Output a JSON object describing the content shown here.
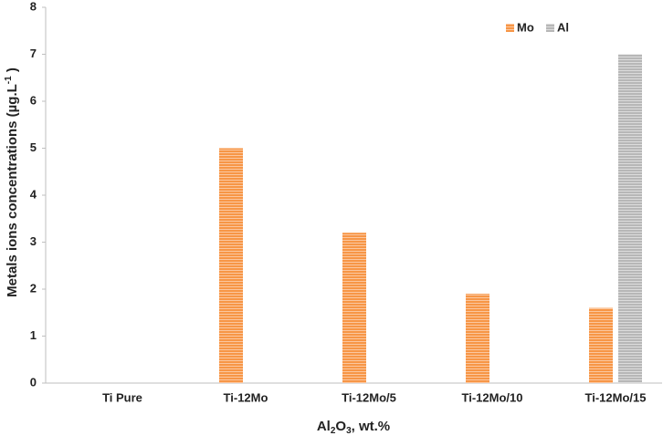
{
  "chart_data": {
    "type": "bar",
    "x_label": [
      "Al",
      "2",
      "O",
      "3",
      ", wt.%"
    ],
    "y_label": [
      "Metals ions concentrations (µg.L",
      "-1",
      " )"
    ],
    "categories": [
      "Ti Pure",
      "Ti-12Mo",
      "Ti-12Mo/5",
      "Ti-12Mo/10",
      "Ti-12Mo/15"
    ],
    "series": [
      {
        "name": "Mo",
        "color": "#f79646",
        "values": [
          0,
          5,
          3.2,
          1.9,
          1.6
        ]
      },
      {
        "name": "Al",
        "color": "#b7b7b7",
        "values": [
          0,
          0,
          0,
          0,
          7
        ]
      }
    ],
    "ylim": [
      0,
      8
    ],
    "yticks": [
      0,
      1,
      2,
      3,
      4,
      5,
      6,
      7,
      8
    ],
    "grid": false,
    "legend": "top-right"
  }
}
